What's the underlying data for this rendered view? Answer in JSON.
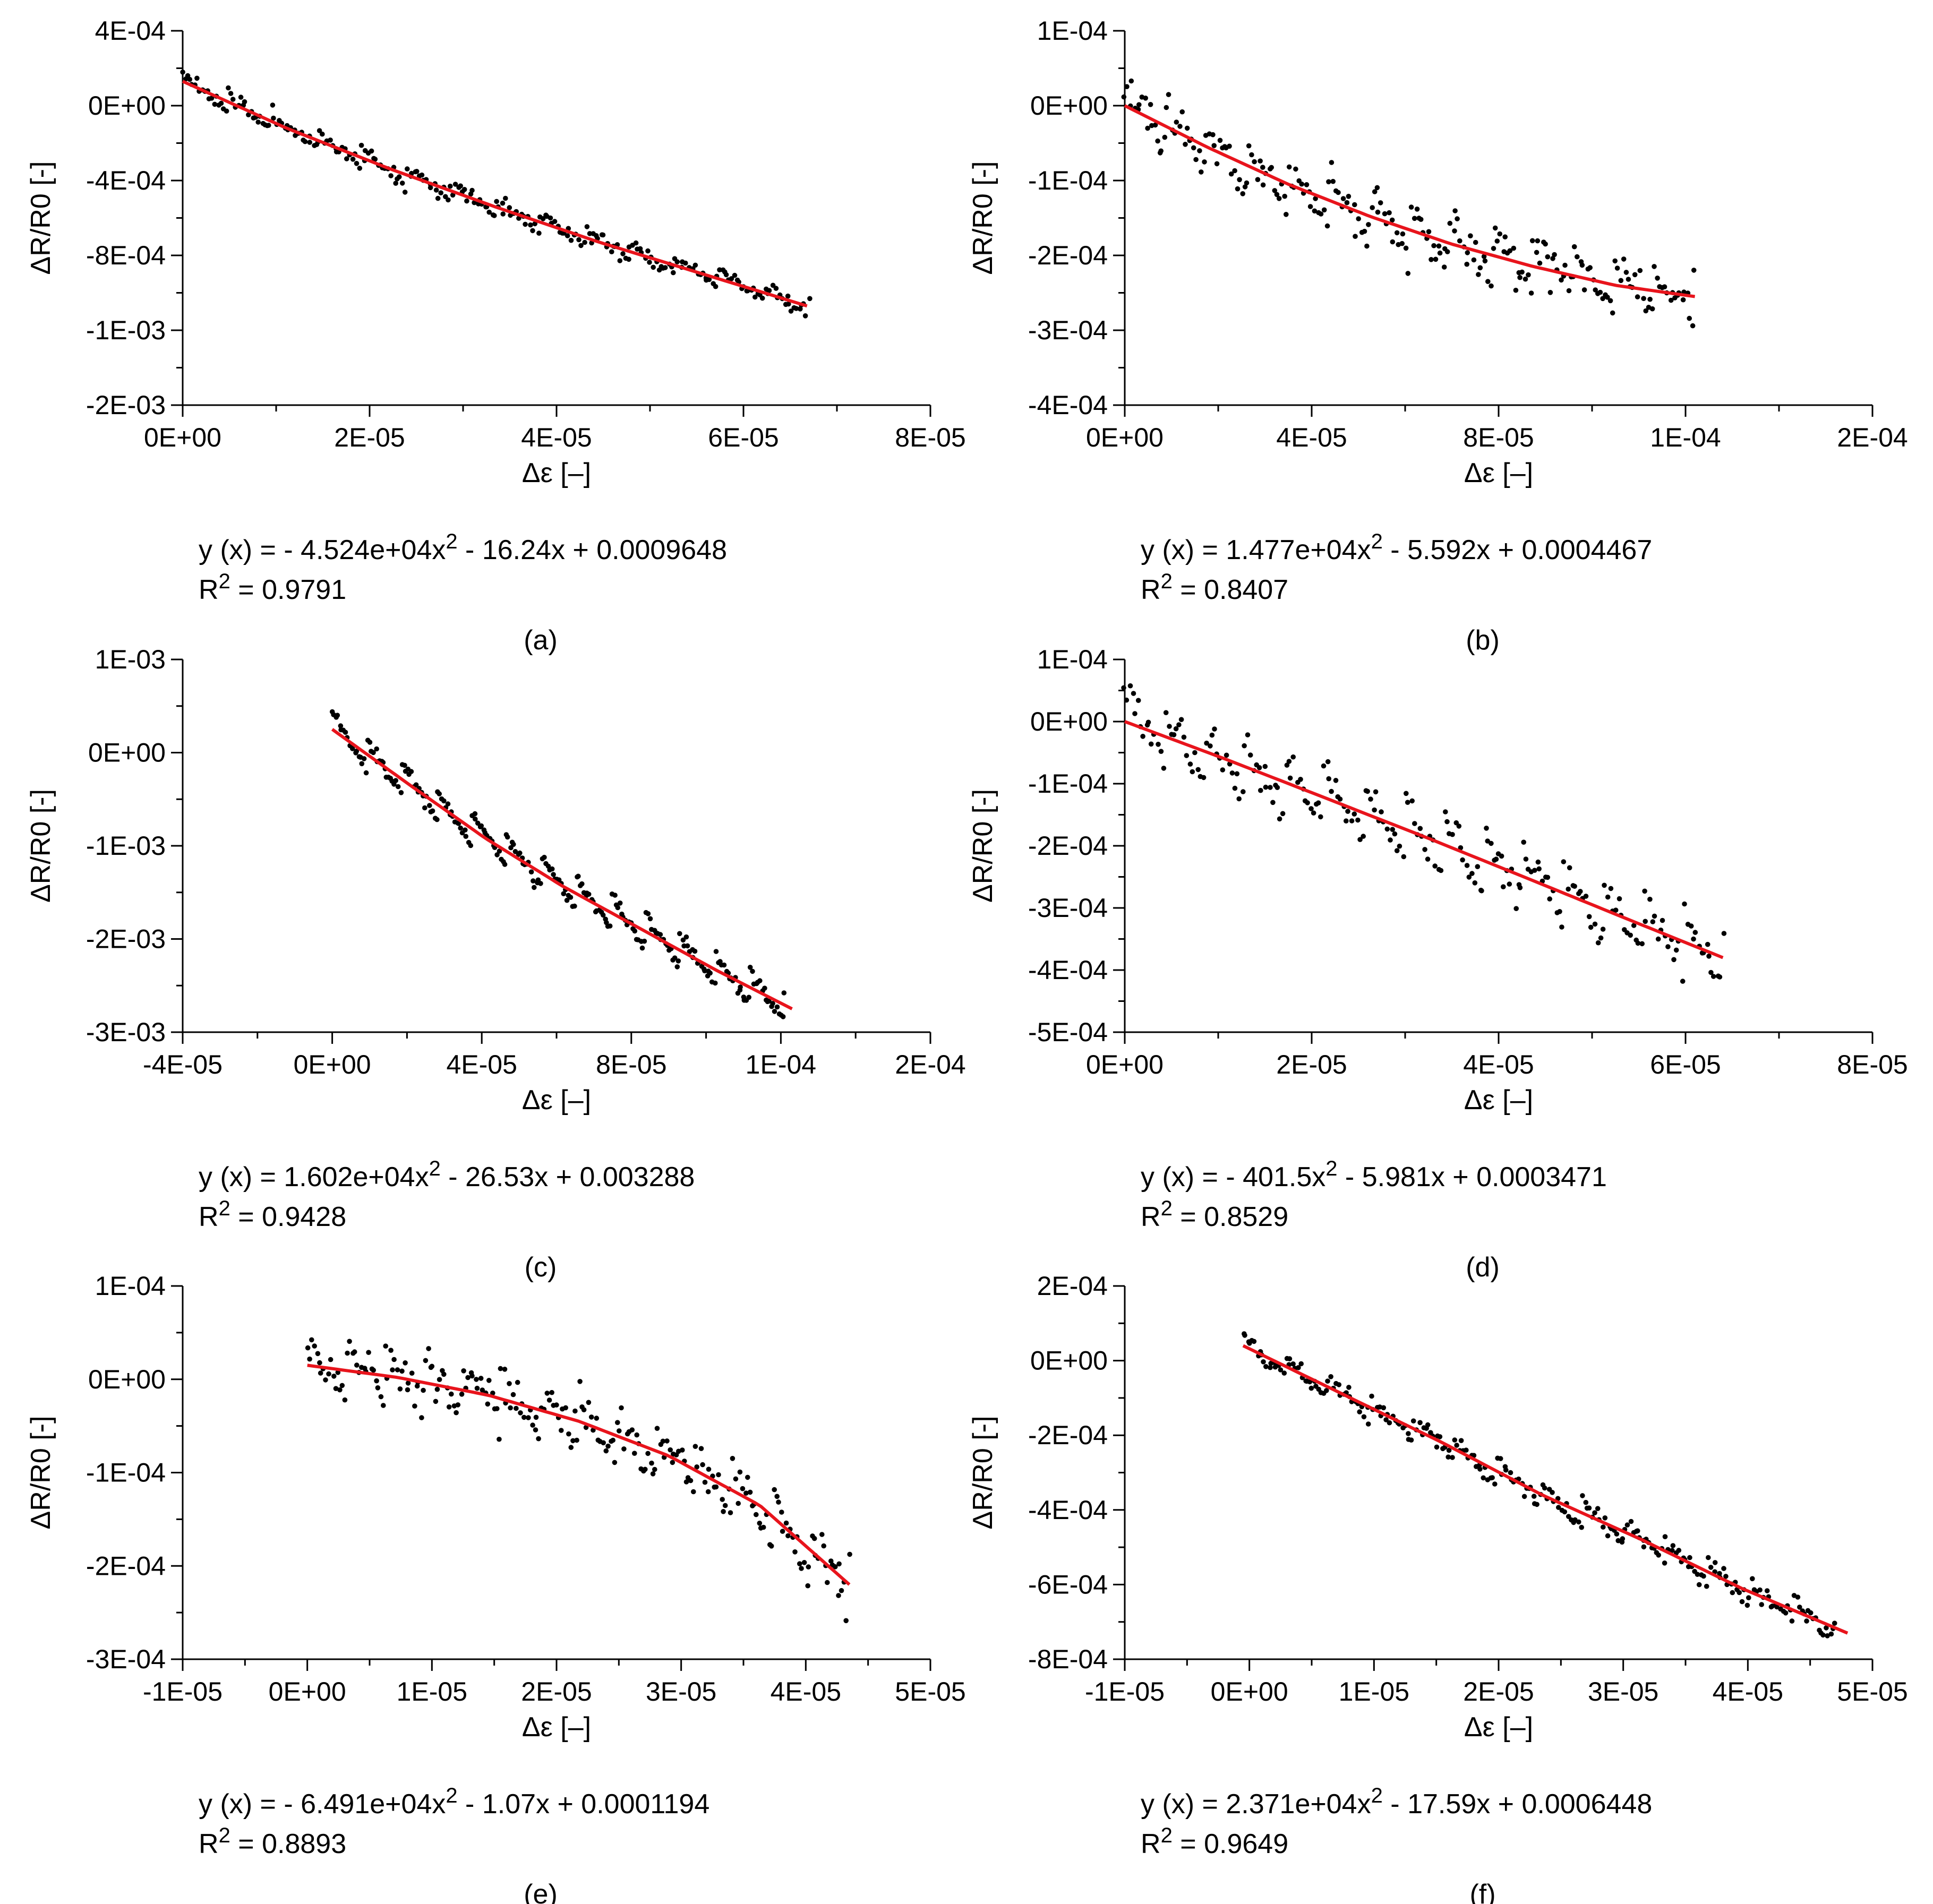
{
  "colors": {
    "fit": "#e8141c",
    "points": "#000000",
    "axis": "#000000"
  },
  "chart_data": [
    {
      "id": "a",
      "type": "scatter",
      "panel_label": "(a)",
      "xlabel": "Δε [–]",
      "ylabel": "ΔR/R0 [-]",
      "xlim": [
        0,
        8e-05
      ],
      "ylim": [
        -0.0016,
        0.0004
      ],
      "x_ticks": [
        0,
        2e-05,
        4e-05,
        6e-05,
        8e-05
      ],
      "x_tick_labels": [
        "0E+00",
        "2E-05",
        "4E-05",
        "6E-05",
        "8E-05"
      ],
      "y_ticks": [
        0.0004,
        0,
        -0.0004,
        -0.0008,
        -0.0012,
        -0.0016
      ],
      "y_tick_labels": [
        "4E-04",
        "0E+00",
        "-4E-04",
        "-8E-04",
        "-1E-03",
        "-2E-03"
      ],
      "fit": {
        "x": [
          0,
          1.11e-05,
          2.23e-05,
          3.34e-05,
          4.46e-05,
          5.57e-05,
          6.68e-05
        ],
        "y": [
          0.00013,
          -0.00012,
          -0.00034,
          -0.00054,
          -0.00073,
          -0.0009,
          -0.00107
        ]
      },
      "scatter_gen": {
        "seed": 11,
        "n": 260,
        "x0": 0,
        "x1": 6.7e-05,
        "noise": 4.5e-05,
        "cycles": 14,
        "amp": 4e-05
      },
      "equation": {
        "prefix": "y (x) = - 4.524e+04x",
        "sup": "2",
        "suffix": " - 16.24x + 0.0009648"
      },
      "r2": {
        "prefix": "R",
        "sup": "2",
        "suffix": " = 0.9791"
      }
    },
    {
      "id": "b",
      "type": "scatter",
      "panel_label": "(b)",
      "xlabel": "Δε [–]",
      "ylabel": "ΔR/R0 [-]",
      "xlim": [
        0,
        0.00016
      ],
      "ylim": [
        -0.0004,
        0.0001
      ],
      "x_ticks": [
        0,
        4e-05,
        8e-05,
        0.00012,
        0.00016
      ],
      "x_tick_labels": [
        "0E+00",
        "4E-05",
        "8E-05",
        "1E-04",
        "2E-04"
      ],
      "y_ticks": [
        0.0001,
        0,
        -0.0001,
        -0.0002,
        -0.0003,
        -0.0004
      ],
      "y_tick_labels": [
        "1E-04",
        "0E+00",
        "-1E-04",
        "-2E-04",
        "-3E-04",
        "-4E-04"
      ],
      "fit": {
        "x": [
          0,
          1.75e-05,
          3.5e-05,
          5.25e-05,
          7e-05,
          8.75e-05,
          0.000105,
          0.000122
        ],
        "y": [
          0,
          -5.5e-05,
          -0.000105,
          -0.000148,
          -0.000185,
          -0.000215,
          -0.00024,
          -0.000255
        ]
      },
      "scatter_gen": {
        "seed": 23,
        "n": 230,
        "x0": 0,
        "x1": 0.000122,
        "noise": 3e-05,
        "cycles": 14,
        "amp": 2.5e-05
      },
      "equation": {
        "prefix": "y (x) = 1.477e+04x",
        "sup": "2",
        "suffix": " - 5.592x + 0.0004467"
      },
      "r2": {
        "prefix": "R",
        "sup": "2",
        "suffix": " = 0.8407"
      }
    },
    {
      "id": "c",
      "type": "scatter",
      "panel_label": "(c)",
      "xlabel": "Δε [–]",
      "ylabel": "ΔR/R0 [-]",
      "xlim": [
        -4e-05,
        0.00016
      ],
      "ylim": [
        -0.003,
        0.001
      ],
      "x_ticks": [
        -4e-05,
        0,
        4e-05,
        8e-05,
        0.00012,
        0.00016
      ],
      "x_tick_labels": [
        "-4E-05",
        "0E+00",
        "4E-05",
        "8E-05",
        "1E-04",
        "2E-04"
      ],
      "y_ticks": [
        0.001,
        0,
        -0.001,
        -0.002,
        -0.003
      ],
      "y_tick_labels": [
        "1E-03",
        "0E+00",
        "-1E-03",
        "-2E-03",
        "-3E-03"
      ],
      "fit": {
        "x": [
          0,
          2.05e-05,
          4.1e-05,
          6.15e-05,
          8.2e-05,
          0.0001025,
          0.000123
        ],
        "y": [
          0.00025,
          -0.00034,
          -0.00092,
          -0.00143,
          -0.00188,
          -0.00233,
          -0.00275
        ]
      },
      "scatter_gen": {
        "seed": 37,
        "n": 240,
        "x0": 0,
        "x1": 0.000121,
        "noise": 8e-05,
        "cycles": 13,
        "amp": 0.00017
      },
      "equation": {
        "prefix": "y (x) = 1.602e+04x",
        "sup": "2",
        "suffix": " - 26.53x + 0.003288"
      },
      "r2": {
        "prefix": "R",
        "sup": "2",
        "suffix": " = 0.9428"
      }
    },
    {
      "id": "d",
      "type": "scatter",
      "panel_label": "(d)",
      "xlabel": "Δε [–]",
      "ylabel": "ΔR/R0 [-]",
      "xlim": [
        0,
        8e-05
      ],
      "ylim": [
        -0.0005,
        0.0001
      ],
      "x_ticks": [
        0,
        2e-05,
        4e-05,
        6e-05,
        8e-05
      ],
      "x_tick_labels": [
        "0E+00",
        "2E-05",
        "4E-05",
        "6E-05",
        "8E-05"
      ],
      "y_ticks": [
        0.0001,
        0,
        -0.0001,
        -0.0002,
        -0.0003,
        -0.0004,
        -0.0005
      ],
      "y_tick_labels": [
        "1E-04",
        "0E+00",
        "-1E-04",
        "-2E-04",
        "-3E-04",
        "-4E-04",
        "-5E-04"
      ],
      "fit": {
        "x": [
          0,
          1.07e-05,
          2.13e-05,
          3.2e-05,
          4.27e-05,
          5.33e-05,
          6.4e-05
        ],
        "y": [
          0,
          -6e-05,
          -0.000122,
          -0.000185,
          -0.00025,
          -0.000315,
          -0.00038
        ]
      },
      "scatter_gen": {
        "seed": 53,
        "n": 220,
        "x0": 0,
        "x1": 6.4e-05,
        "noise": 3e-05,
        "cycles": 15,
        "amp": 4.5e-05
      },
      "equation": {
        "prefix": "y (x) = - 401.5x",
        "sup": "2",
        "suffix": " - 5.981x + 0.0003471"
      },
      "r2": {
        "prefix": "R",
        "sup": "2",
        "suffix": " = 0.8529"
      }
    },
    {
      "id": "e",
      "type": "scatter",
      "panel_label": "(e)",
      "xlabel": "Δε [–]",
      "ylabel": "ΔR/R0 [-]",
      "xlim": [
        -1e-05,
        5e-05
      ],
      "ylim": [
        -0.0003,
        0.0001
      ],
      "x_ticks": [
        -1e-05,
        0,
        1e-05,
        2e-05,
        3e-05,
        4e-05,
        5e-05
      ],
      "x_tick_labels": [
        "-1E-05",
        "0E+00",
        "1E-05",
        "2E-05",
        "3E-05",
        "4E-05",
        "5E-05"
      ],
      "y_ticks": [
        0.0001,
        0,
        -0.0001,
        -0.0002,
        -0.0003
      ],
      "y_tick_labels": [
        "1E-04",
        "0E+00",
        "-1E-04",
        "-2E-04",
        "-3E-04"
      ],
      "fit": {
        "x": [
          0,
          7.25e-06,
          1.45e-05,
          2.18e-05,
          2.9e-05,
          3.63e-05,
          4.35e-05
        ],
        "y": [
          1.5e-05,
          2e-06,
          -1.7e-05,
          -4.5e-05,
          -8.2e-05,
          -0.000135,
          -0.00022
        ]
      },
      "scatter_gen": {
        "seed": 71,
        "n": 230,
        "x0": 0,
        "x1": 4.35e-05,
        "noise": 2.5e-05,
        "cycles": 14,
        "amp": 2e-05
      },
      "equation": {
        "prefix": "y (x) = - 6.491e+04x",
        "sup": "2",
        "suffix": " - 1.07x + 0.0001194"
      },
      "r2": {
        "prefix": "R",
        "sup": "2",
        "suffix": " = 0.8893"
      }
    },
    {
      "id": "f",
      "type": "scatter",
      "panel_label": "(f)",
      "xlabel": "Δε [–]",
      "ylabel": "ΔR/R0 [-]",
      "xlim": [
        -1e-05,
        5e-05
      ],
      "ylim": [
        -0.0008,
        0.0002
      ],
      "x_ticks": [
        -1e-05,
        0,
        1e-05,
        2e-05,
        3e-05,
        4e-05,
        5e-05
      ],
      "x_tick_labels": [
        "-1E-05",
        "0E+00",
        "1E-05",
        "2E-05",
        "3E-05",
        "4E-05",
        "5E-05"
      ],
      "y_ticks": [
        0.0002,
        0,
        -0.0002,
        -0.0004,
        -0.0006,
        -0.0008
      ],
      "y_tick_labels": [
        "2E-04",
        "0E+00",
        "-2E-04",
        "-4E-04",
        "-6E-04",
        "-8E-04"
      ],
      "fit": {
        "x": [
          -5e-07,
          7.5e-06,
          1.55e-05,
          2.35e-05,
          3.15e-05,
          3.95e-05,
          4.8e-05
        ],
        "y": [
          4e-05,
          -9e-05,
          -0.00022,
          -0.00036,
          -0.00048,
          -0.00061,
          -0.00073
        ]
      },
      "scatter_gen": {
        "seed": 89,
        "n": 250,
        "x0": -5e-07,
        "x1": 4.7e-05,
        "noise": 3e-05,
        "cycles": 14,
        "amp": 2.5e-05
      },
      "equation": {
        "prefix": "y (x) = 2.371e+04x",
        "sup": "2",
        "suffix": " - 17.59x + 0.0006448"
      },
      "r2": {
        "prefix": "R",
        "sup": "2",
        "suffix": " = 0.9649"
      }
    }
  ]
}
